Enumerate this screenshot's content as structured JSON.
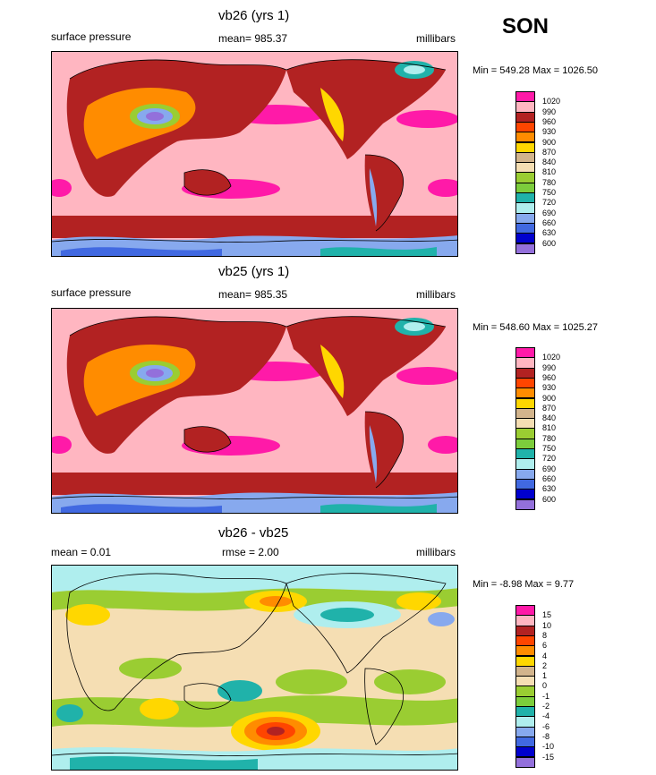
{
  "season": "SON",
  "panels": [
    {
      "title": "vb26 (yrs 1)",
      "left_label": "surface pressure",
      "center_label": "mean= 985.37",
      "right_label": "millibars",
      "minmax": "Min = 549.28 Max = 1026.50",
      "legend": {
        "labels": [
          "1020",
          "990",
          "960",
          "930",
          "900",
          "870",
          "840",
          "810",
          "780",
          "750",
          "720",
          "690",
          "660",
          "630",
          "600"
        ],
        "colors": [
          "#ff1aa8",
          "#ffb6c1",
          "#b22222",
          "#ff4500",
          "#ff8c00",
          "#ffd700",
          "#d2b48c",
          "#f5deb3",
          "#9acd32",
          "#7ccd3c",
          "#20b2aa",
          "#afeeee",
          "#87a9ee",
          "#4169e1",
          "#0000cd",
          "#9370db"
        ]
      }
    },
    {
      "title": "vb25 (yrs 1)",
      "left_label": "surface pressure",
      "center_label": "mean= 985.35",
      "right_label": "millibars",
      "minmax": "Min = 548.60 Max = 1025.27",
      "legend": {
        "labels": [
          "1020",
          "990",
          "960",
          "930",
          "900",
          "870",
          "840",
          "810",
          "780",
          "750",
          "720",
          "690",
          "660",
          "630",
          "600"
        ],
        "colors": [
          "#ff1aa8",
          "#ffb6c1",
          "#b22222",
          "#ff4500",
          "#ff8c00",
          "#ffd700",
          "#d2b48c",
          "#f5deb3",
          "#9acd32",
          "#7ccd3c",
          "#20b2aa",
          "#afeeee",
          "#87a9ee",
          "#4169e1",
          "#0000cd",
          "#9370db"
        ]
      }
    },
    {
      "title": "vb26 - vb25",
      "left_label": "mean =   0.01",
      "center_label": "rmse =   2.00",
      "right_label": "millibars",
      "minmax": "Min =  -8.98 Max =   9.77",
      "legend": {
        "labels": [
          "15",
          "10",
          "8",
          "6",
          "4",
          "2",
          "1",
          "0",
          "-1",
          "-2",
          "-4",
          "-6",
          "-8",
          "-10",
          "-15"
        ],
        "colors": [
          "#ff1aa8",
          "#ffb6c1",
          "#b22222",
          "#ff4500",
          "#ff8c00",
          "#ffd700",
          "#d2b48c",
          "#f5deb3",
          "#9acd32",
          "#7ccd3c",
          "#20b2aa",
          "#afeeee",
          "#87a9ee",
          "#4169e1",
          "#0000cd",
          "#9370db"
        ]
      }
    }
  ]
}
